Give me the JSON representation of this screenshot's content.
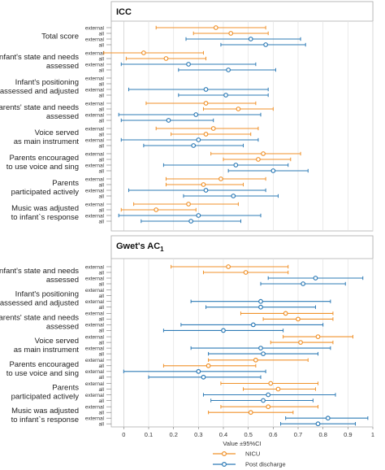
{
  "axis": {
    "xlabel": "Value ±95%CI",
    "xlim": [
      -0.05,
      1.0
    ],
    "xticks": [
      "0",
      "0.1",
      "0.2",
      "0.3",
      "0.4",
      "0.5",
      "0.6",
      "0.7",
      "0.8",
      "0.9",
      "1"
    ]
  },
  "legend": {
    "placement": "bottom-center",
    "items": [
      "NICU",
      "Post discharge"
    ]
  },
  "colors": {
    "NICU": "#f0922b",
    "Post discharge": "#2e7bb6"
  },
  "row_labels": [
    "external",
    "all",
    "external",
    "all"
  ],
  "chart_data": [
    {
      "type": "forest",
      "title": "ICC",
      "grid": true,
      "categories": [
        {
          "label": "Total score",
          "rows": [
            {
              "series": "NICU",
              "sample": "external",
              "est": 0.37,
              "lo": 0.13,
              "hi": 0.57
            },
            {
              "series": "NICU",
              "sample": "all",
              "est": 0.43,
              "lo": 0.28,
              "hi": 0.58
            },
            {
              "series": "Post discharge",
              "sample": "external",
              "est": 0.51,
              "lo": 0.25,
              "hi": 0.71
            },
            {
              "series": "Post discharge",
              "sample": "all",
              "est": 0.57,
              "lo": 0.39,
              "hi": 0.73
            }
          ]
        },
        {
          "label": "Infant's state and needs\nassessed",
          "rows": [
            {
              "series": "NICU",
              "sample": "external",
              "est": 0.08,
              "lo": -0.08,
              "hi": 0.32
            },
            {
              "series": "NICU",
              "sample": "all",
              "est": 0.17,
              "lo": 0.01,
              "hi": 0.33
            },
            {
              "series": "Post discharge",
              "sample": "external",
              "est": 0.26,
              "lo": -0.01,
              "hi": 0.53
            },
            {
              "series": "Post discharge",
              "sample": "all",
              "est": 0.42,
              "lo": 0.22,
              "hi": 0.61
            }
          ]
        },
        {
          "label": "Infant's positioning\nassessed and adjusted",
          "rows": [
            {
              "series": "Post discharge",
              "sample": "external",
              "est": 0.33,
              "lo": 0.02,
              "hi": 0.58
            },
            {
              "series": "Post discharge",
              "sample": "all",
              "est": 0.41,
              "lo": 0.22,
              "hi": 0.58
            }
          ]
        },
        {
          "label": "Parents' state and needs\nassessed",
          "rows": [
            {
              "series": "NICU",
              "sample": "external",
              "est": 0.33,
              "lo": 0.09,
              "hi": 0.53
            },
            {
              "series": "NICU",
              "sample": "all",
              "est": 0.46,
              "lo": 0.32,
              "hi": 0.6
            },
            {
              "series": "Post discharge",
              "sample": "external",
              "est": 0.29,
              "lo": -0.02,
              "hi": 0.55
            },
            {
              "series": "Post discharge",
              "sample": "all",
              "est": 0.18,
              "lo": -0.01,
              "hi": 0.36
            }
          ]
        },
        {
          "label": "Voice served\nas main instrument",
          "rows": [
            {
              "series": "NICU",
              "sample": "external",
              "est": 0.36,
              "lo": 0.13,
              "hi": 0.54
            },
            {
              "series": "NICU",
              "sample": "all",
              "est": 0.33,
              "lo": 0.19,
              "hi": 0.51
            },
            {
              "series": "Post discharge",
              "sample": "external",
              "est": 0.3,
              "lo": -0.01,
              "hi": 0.54
            },
            {
              "series": "Post discharge",
              "sample": "all",
              "est": 0.28,
              "lo": 0.08,
              "hi": 0.48
            }
          ]
        },
        {
          "label": "Parents encouraged\nto use voice and sing",
          "rows": [
            {
              "series": "NICU",
              "sample": "external",
              "est": 0.56,
              "lo": 0.35,
              "hi": 0.71
            },
            {
              "series": "NICU",
              "sample": "all",
              "est": 0.54,
              "lo": 0.4,
              "hi": 0.67
            },
            {
              "series": "Post discharge",
              "sample": "external",
              "est": 0.45,
              "lo": 0.16,
              "hi": 0.66
            },
            {
              "series": "Post discharge",
              "sample": "all",
              "est": 0.6,
              "lo": 0.42,
              "hi": 0.74
            }
          ]
        },
        {
          "label": "Parents\nparticipated actively",
          "rows": [
            {
              "series": "NICU",
              "sample": "external",
              "est": 0.39,
              "lo": 0.17,
              "hi": 0.57
            },
            {
              "series": "NICU",
              "sample": "all",
              "est": 0.32,
              "lo": 0.17,
              "hi": 0.48
            },
            {
              "series": "Post discharge",
              "sample": "external",
              "est": 0.33,
              "lo": 0.02,
              "hi": 0.57
            },
            {
              "series": "Post discharge",
              "sample": "all",
              "est": 0.44,
              "lo": 0.24,
              "hi": 0.62
            }
          ]
        },
        {
          "label": "Music was adjusted\nto infant`s response",
          "rows": [
            {
              "series": "NICU",
              "sample": "external",
              "est": 0.26,
              "lo": 0.04,
              "hi": 0.46
            },
            {
              "series": "NICU",
              "sample": "all",
              "est": 0.13,
              "lo": -0.01,
              "hi": 0.29
            },
            {
              "series": "Post discharge",
              "sample": "external",
              "est": 0.3,
              "lo": -0.02,
              "hi": 0.55
            },
            {
              "series": "Post discharge",
              "sample": "all",
              "est": 0.27,
              "lo": 0.07,
              "hi": 0.47
            }
          ]
        }
      ]
    },
    {
      "type": "forest",
      "title": "Gwet's AC",
      "title_subscript": "1",
      "grid": true,
      "categories": [
        {
          "label": "Infant's state and needs\nassessed",
          "rows": [
            {
              "series": "NICU",
              "sample": "external",
              "est": 0.42,
              "lo": 0.19,
              "hi": 0.66
            },
            {
              "series": "NICU",
              "sample": "all",
              "est": 0.49,
              "lo": 0.32,
              "hi": 0.66
            },
            {
              "series": "Post discharge",
              "sample": "external",
              "est": 0.77,
              "lo": 0.58,
              "hi": 0.96
            },
            {
              "series": "Post discharge",
              "sample": "all",
              "est": 0.72,
              "lo": 0.55,
              "hi": 0.89
            }
          ]
        },
        {
          "label": "Infant's positioning\nassessed and adjusted",
          "rows": [
            {
              "series": "Post discharge",
              "sample": "external",
              "est": 0.55,
              "lo": 0.27,
              "hi": 0.83
            },
            {
              "series": "Post discharge",
              "sample": "all",
              "est": 0.55,
              "lo": 0.33,
              "hi": 0.77
            }
          ]
        },
        {
          "label": "Parents' state and needs\nassessed",
          "rows": [
            {
              "series": "NICU",
              "sample": "external",
              "est": 0.65,
              "lo": 0.47,
              "hi": 0.84
            },
            {
              "series": "NICU",
              "sample": "all",
              "est": 0.7,
              "lo": 0.56,
              "hi": 0.84
            },
            {
              "series": "Post discharge",
              "sample": "external",
              "est": 0.52,
              "lo": 0.23,
              "hi": 0.8
            },
            {
              "series": "Post discharge",
              "sample": "all",
              "est": 0.4,
              "lo": 0.16,
              "hi": 0.64
            }
          ]
        },
        {
          "label": "Voice served\nas main instrument",
          "rows": [
            {
              "series": "NICU",
              "sample": "external",
              "est": 0.78,
              "lo": 0.64,
              "hi": 0.92
            },
            {
              "series": "NICU",
              "sample": "all",
              "est": 0.71,
              "lo": 0.59,
              "hi": 0.84
            },
            {
              "series": "Post discharge",
              "sample": "external",
              "est": 0.55,
              "lo": 0.27,
              "hi": 0.83
            },
            {
              "series": "Post discharge",
              "sample": "all",
              "est": 0.56,
              "lo": 0.34,
              "hi": 0.78
            }
          ]
        },
        {
          "label": "Parents encouraged\nto use voice and sing",
          "rows": [
            {
              "series": "NICU",
              "sample": "external",
              "est": 0.53,
              "lo": 0.34,
              "hi": 0.74
            },
            {
              "series": "NICU",
              "sample": "all",
              "est": 0.34,
              "lo": 0.16,
              "hi": 0.53
            },
            {
              "series": "Post discharge",
              "sample": "external",
              "est": 0.3,
              "lo": 0.0,
              "hi": 0.57
            },
            {
              "series": "Post discharge",
              "sample": "all",
              "est": 0.32,
              "lo": 0.1,
              "hi": 0.55
            }
          ]
        },
        {
          "label": "Parents\nparticipated actively",
          "rows": [
            {
              "series": "NICU",
              "sample": "external",
              "est": 0.59,
              "lo": 0.39,
              "hi": 0.78
            },
            {
              "series": "NICU",
              "sample": "all",
              "est": 0.62,
              "lo": 0.48,
              "hi": 0.77
            },
            {
              "series": "Post discharge",
              "sample": "external",
              "est": 0.58,
              "lo": 0.32,
              "hi": 0.85
            },
            {
              "series": "Post discharge",
              "sample": "all",
              "est": 0.56,
              "lo": 0.35,
              "hi": 0.76
            }
          ]
        },
        {
          "label": "Music was adjusted\nto infant`s response",
          "rows": [
            {
              "series": "NICU",
              "sample": "external",
              "est": 0.58,
              "lo": 0.39,
              "hi": 0.78
            },
            {
              "series": "NICU",
              "sample": "all",
              "est": 0.51,
              "lo": 0.34,
              "hi": 0.68
            },
            {
              "series": "Post discharge",
              "sample": "external",
              "est": 0.82,
              "lo": 0.65,
              "hi": 0.98
            },
            {
              "series": "Post discharge",
              "sample": "all",
              "est": 0.78,
              "lo": 0.63,
              "hi": 0.93
            }
          ]
        }
      ]
    }
  ]
}
